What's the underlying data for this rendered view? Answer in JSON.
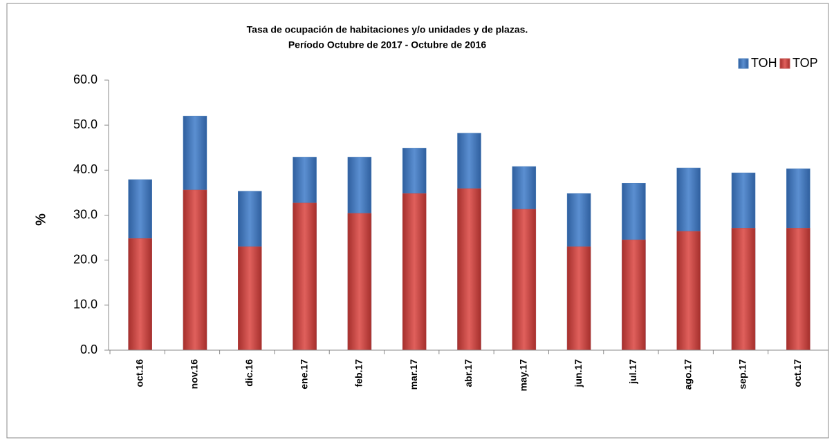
{
  "chart_data": {
    "type": "bar",
    "title": "Tasa  de ocupación de habitaciones y/o unidades y de plazas.",
    "subtitle": "Período  Octubre  de 2017 -  Octubre de 2016",
    "y_label": "%",
    "categories": [
      "oct.16",
      "nov.16",
      "dic.16",
      "ene.17",
      "feb.17",
      "mar.17",
      "abr.17",
      "may.17",
      "jun.17",
      "jul.17",
      "ago.17",
      "sep.17",
      "oct.17"
    ],
    "series": [
      {
        "name": "TOH",
        "color": "#4a7ebb",
        "values": [
          37.9,
          52.0,
          35.3,
          42.9,
          42.9,
          44.9,
          48.2,
          40.8,
          34.8,
          37.1,
          40.5,
          39.4,
          40.3
        ]
      },
      {
        "name": "TOP",
        "color": "#c0504d",
        "values": [
          24.8,
          35.6,
          23.0,
          32.7,
          30.4,
          34.8,
          35.9,
          31.3,
          23.0,
          24.5,
          26.4,
          27.1,
          27.1
        ]
      }
    ],
    "ylim": [
      0,
      60
    ],
    "yticks": [
      {
        "value": 0,
        "label": "0.0"
      },
      {
        "value": 10,
        "label": "10.0"
      },
      {
        "value": 20,
        "label": "20.0"
      },
      {
        "value": 30,
        "label": "30.0"
      },
      {
        "value": 40,
        "label": "40.0"
      },
      {
        "value": 50,
        "label": "50.0"
      },
      {
        "value": 60,
        "label": "60.0"
      }
    ],
    "legend": "top-right"
  }
}
